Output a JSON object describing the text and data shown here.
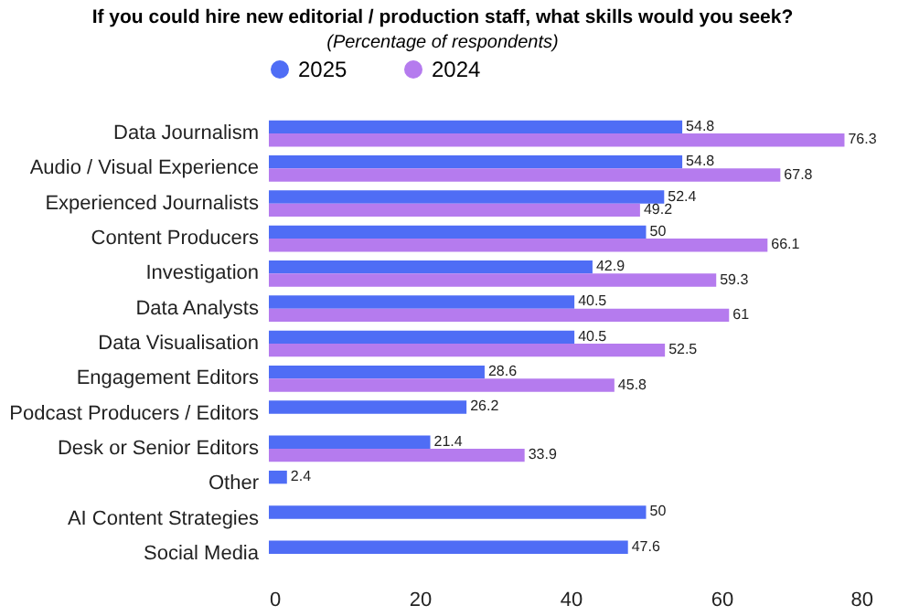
{
  "chart_data": {
    "type": "bar",
    "orientation": "horizontal",
    "title": "If you could hire new editorial / production staff, what skills would you seek?",
    "subtitle": "(Percentage of respondents)",
    "categories": [
      "Data Journalism",
      "Audio / Visual Experience",
      "Experienced Journalists",
      "Content Producers",
      "Investigation",
      "Data Analysts",
      "Data Visualisation",
      "Engagement Editors",
      "Podcast Producers / Editors",
      "Desk or Senior Editors",
      "Other",
      "AI Content Strategies",
      "Social Media"
    ],
    "series": [
      {
        "name": "2025",
        "color": "#4f6df5",
        "values": [
          54.8,
          54.8,
          52.4,
          50,
          42.9,
          40.5,
          40.5,
          28.6,
          26.2,
          21.4,
          2.4,
          50,
          47.6
        ]
      },
      {
        "name": "2024",
        "color": "#b57bee",
        "values": [
          76.3,
          67.8,
          49.2,
          66.1,
          59.3,
          61,
          52.5,
          45.8,
          null,
          33.9,
          null,
          null,
          null
        ]
      }
    ],
    "xlim": [
      0,
      80
    ],
    "xticks": [
      0,
      20,
      40,
      60,
      80
    ],
    "grid": false,
    "legend": "top",
    "data_labels": true
  }
}
